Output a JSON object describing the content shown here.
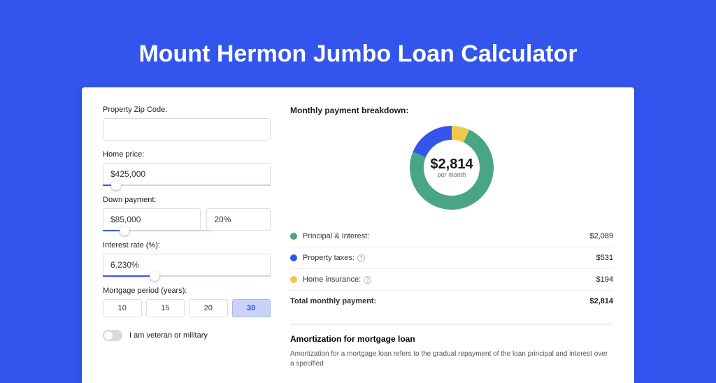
{
  "title": "Mount Hermon Jumbo Loan Calculator",
  "colors": {
    "page_bg": "#3355ee",
    "card_bg": "#ffffff",
    "slider_fill": "#3355ee",
    "slider_track": "#cfd3e8",
    "principal": "#4aa585",
    "taxes": "#3355ee",
    "insurance": "#f1c94a"
  },
  "form": {
    "zip_label": "Property Zip Code:",
    "zip_value": "",
    "home_price_label": "Home price:",
    "home_price_value": "$425,000",
    "home_price_slider_percent": 8,
    "down_payment_label": "Down payment:",
    "down_payment_value": "$85,000",
    "down_payment_percent_value": "20%",
    "down_payment_slider_percent": 20,
    "interest_label": "Interest rate (%):",
    "interest_value": "6.230%",
    "interest_slider_percent": 31,
    "period_label": "Mortgage period (years):",
    "period_options": [
      "10",
      "15",
      "20",
      "30"
    ],
    "period_selected_index": 3,
    "veteran_label": "I am veteran or military",
    "veteran_on": false
  },
  "breakdown": {
    "title": "Monthly payment breakdown:",
    "center_amount": "$2,814",
    "center_sub": "per month",
    "donut": {
      "principal_deg": 267,
      "taxes_deg": 68,
      "insurance_deg": 25
    },
    "items": [
      {
        "label": "Principal & Interest:",
        "amount": "$2,089",
        "color": "#4aa585",
        "help": false
      },
      {
        "label": "Property taxes:",
        "amount": "$531",
        "color": "#3355ee",
        "help": true
      },
      {
        "label": "Home insurance:",
        "amount": "$194",
        "color": "#f1c94a",
        "help": true
      }
    ],
    "total_label": "Total monthly payment:",
    "total_amount": "$2,814"
  },
  "amortization": {
    "title": "Amortization for mortgage loan",
    "text": "Amortization for a mortgage loan refers to the gradual repayment of the loan principal and interest over a specified"
  }
}
